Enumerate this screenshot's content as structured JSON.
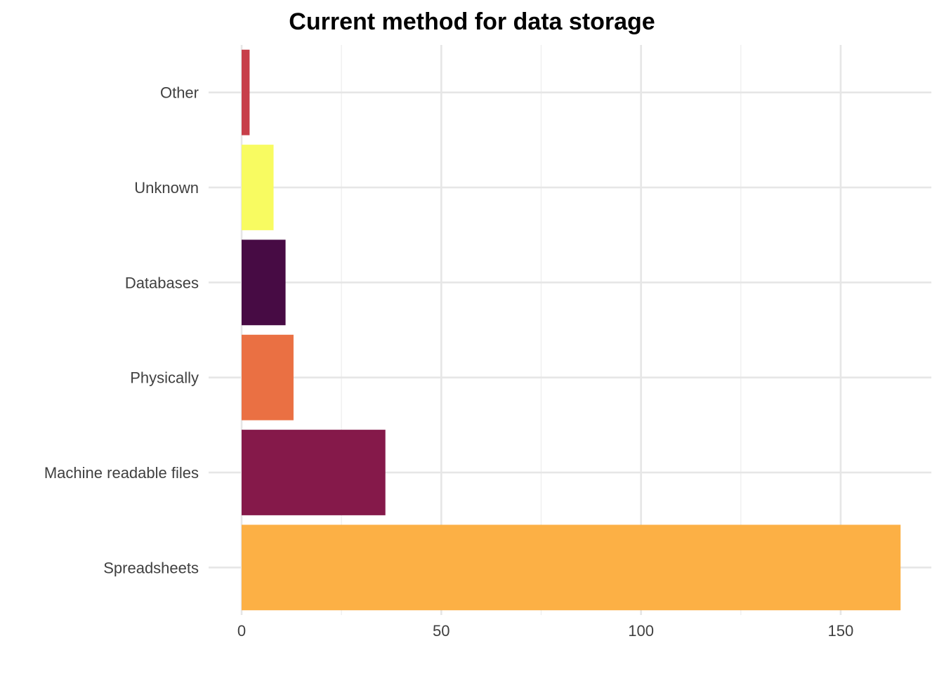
{
  "chart_data": {
    "type": "bar",
    "orientation": "horizontal",
    "title": "Current method for data storage",
    "xlabel": "",
    "ylabel": "",
    "categories": [
      "Spreadsheets",
      "Machine readable files",
      "Physically",
      "Databases",
      "Unknown",
      "Other"
    ],
    "values": [
      165,
      36,
      13,
      11,
      8,
      2
    ],
    "colors": [
      "#fcb045",
      "#85194a",
      "#ea7043",
      "#470b44",
      "#f8fb61",
      "#c73f4a"
    ],
    "xlim": [
      0,
      172
    ],
    "x_ticks": [
      0,
      50,
      100,
      150
    ],
    "x_tick_labels": [
      "0",
      "50",
      "100",
      "150"
    ],
    "x_minor_ticks": [
      25,
      75,
      125
    ],
    "grid": true,
    "legend": "none"
  }
}
